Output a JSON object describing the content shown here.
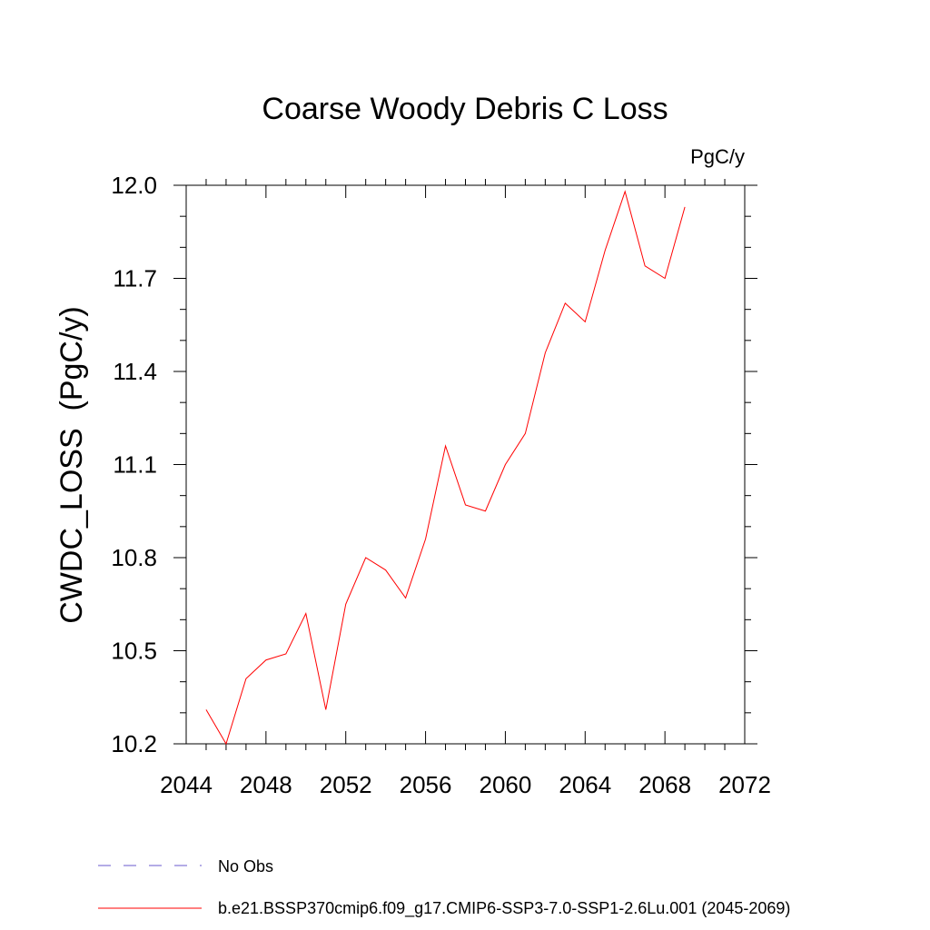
{
  "chart_data": {
    "type": "line",
    "title": "Coarse Woody Debris C Loss",
    "units": "PgC/y",
    "ylabel": "CWDC_LOSS  (PgC/y)",
    "xlabel": "",
    "xlim": [
      2044,
      2072
    ],
    "ylim": [
      10.2,
      12.0
    ],
    "x_ticks": [
      2044,
      2048,
      2052,
      2056,
      2060,
      2064,
      2068,
      2072
    ],
    "x_tick_labels": [
      "2044",
      "2048",
      "2052",
      "2056",
      "2060",
      "2064",
      "2068",
      "2072"
    ],
    "y_ticks": [
      10.2,
      10.5,
      10.8,
      11.1,
      11.4,
      11.7,
      12.0
    ],
    "y_tick_labels": [
      "10.2",
      "10.5",
      "10.8",
      "11.1",
      "11.4",
      "11.7",
      "12.0"
    ],
    "grid": false,
    "legend_position": "bottom",
    "series": [
      {
        "name": "b.e21.BSSP370cmip6.f09_g17.CMIP6-SSP3-7.0-SSP1-2.6Lu.001 (2045-2069)",
        "color": "#ff0000",
        "x": [
          2045,
          2046,
          2047,
          2048,
          2049,
          2050,
          2051,
          2052,
          2053,
          2054,
          2055,
          2056,
          2057,
          2058,
          2059,
          2060,
          2061,
          2062,
          2063,
          2064,
          2065,
          2066,
          2067,
          2068,
          2069
        ],
        "values": [
          10.31,
          10.2,
          10.41,
          10.47,
          10.49,
          10.62,
          10.31,
          10.65,
          10.8,
          10.76,
          10.67,
          10.86,
          11.16,
          10.97,
          10.95,
          11.1,
          11.2,
          11.46,
          11.62,
          11.56,
          11.79,
          11.98,
          11.74,
          11.7,
          11.93
        ]
      }
    ],
    "legend": [
      {
        "label": "No Obs",
        "color": "#6a5acd",
        "style": "dashed"
      },
      {
        "label": "b.e21.BSSP370cmip6.f09_g17.CMIP6-SSP3-7.0-SSP1-2.6Lu.001 (2045-2069)",
        "color": "#ff0000",
        "style": "solid"
      }
    ]
  }
}
